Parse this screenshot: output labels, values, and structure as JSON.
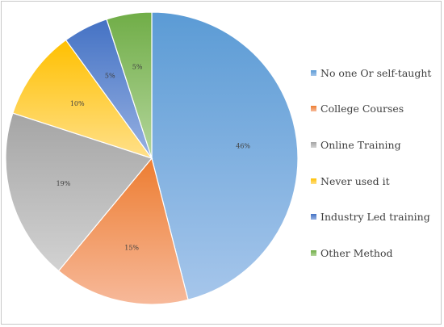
{
  "chart_data": {
    "type": "pie",
    "title": "",
    "legend_position": "right",
    "start_angle_deg": 0,
    "direction": "clockwise",
    "slices": [
      {
        "name": "No one Or self-taught",
        "value": 46,
        "label": "46%",
        "color": "#5b9bd5",
        "color_light": "#a6c6eb"
      },
      {
        "name": "College Courses",
        "value": 15,
        "label": "15%",
        "color": "#ed7d31",
        "color_light": "#f7b99a"
      },
      {
        "name": "Online Training",
        "value": 19,
        "label": "19%",
        "color": "#a5a5a5",
        "color_light": "#d2d2d2"
      },
      {
        "name": "Never used it",
        "value": 10,
        "label": "10%",
        "color": "#ffc000",
        "color_light": "#ffe08a"
      },
      {
        "name": "Industry Led training",
        "value": 5,
        "label": "5%",
        "color": "#4472c4",
        "color_light": "#97b1e2"
      },
      {
        "name": "Other Method",
        "value": 5,
        "label": "5%",
        "color": "#70ad47",
        "color_light": "#b4d69c"
      }
    ]
  }
}
